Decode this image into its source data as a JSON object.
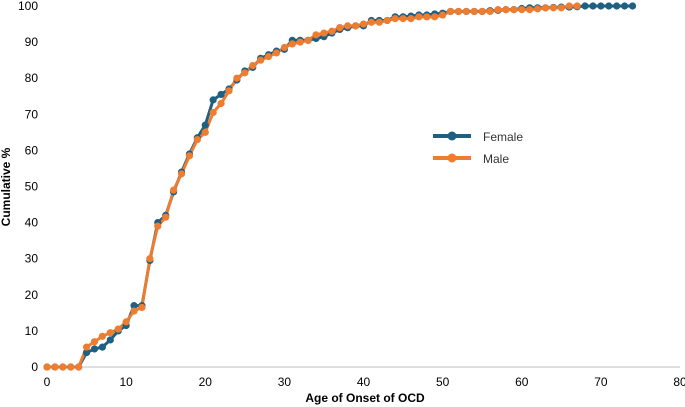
{
  "chart_data": {
    "type": "line",
    "title": "",
    "xlabel": "Age of Onset of OCD",
    "ylabel": "Cumulative %",
    "xlim": [
      0,
      80
    ],
    "ylim": [
      0,
      100
    ],
    "x_ticks": [
      0,
      10,
      20,
      30,
      40,
      50,
      60,
      70,
      80
    ],
    "y_ticks": [
      0,
      10,
      20,
      30,
      40,
      50,
      60,
      70,
      80,
      90,
      100
    ],
    "grid": false,
    "legend_position": "right",
    "series": [
      {
        "name": "Female",
        "color": "#1f5f82",
        "x": [
          0,
          1,
          2,
          3,
          4,
          5,
          6,
          7,
          8,
          9,
          10,
          11,
          12,
          13,
          14,
          15,
          16,
          17,
          18,
          19,
          20,
          21,
          22,
          23,
          24,
          25,
          26,
          27,
          28,
          29,
          30,
          31,
          32,
          33,
          34,
          35,
          36,
          37,
          38,
          39,
          40,
          41,
          42,
          43,
          44,
          45,
          46,
          47,
          48,
          49,
          50,
          51,
          52,
          53,
          54,
          55,
          56,
          57,
          58,
          59,
          60,
          61,
          62,
          63,
          64,
          65,
          66,
          67,
          68,
          69,
          70,
          71,
          72,
          73,
          74
        ],
        "values": [
          0,
          0,
          0,
          0,
          0,
          4,
          5,
          5.5,
          7.5,
          10,
          11.5,
          17,
          17,
          29.5,
          40,
          42,
          48.5,
          54,
          59,
          63.5,
          67,
          74,
          75.5,
          77,
          79.5,
          82,
          83,
          85.5,
          86.5,
          87.5,
          88,
          90.5,
          90.5,
          90.5,
          91,
          91.5,
          92.5,
          93.5,
          94,
          94.5,
          94.5,
          96,
          96,
          96,
          97,
          97,
          97.2,
          97.5,
          97.5,
          97.8,
          98,
          98.5,
          98.5,
          98.5,
          98.5,
          98.5,
          98.7,
          98.8,
          99,
          99,
          99.3,
          99.5,
          99.5,
          99.5,
          99.6,
          99.7,
          99.7,
          99.8,
          100,
          100,
          100,
          100,
          100,
          100,
          100
        ]
      },
      {
        "name": "Male",
        "color": "#ed7d31",
        "x": [
          0,
          1,
          2,
          3,
          4,
          5,
          6,
          7,
          8,
          9,
          10,
          11,
          12,
          13,
          14,
          15,
          16,
          17,
          18,
          19,
          20,
          21,
          22,
          23,
          24,
          25,
          26,
          27,
          28,
          29,
          30,
          31,
          32,
          33,
          34,
          35,
          36,
          37,
          38,
          39,
          40,
          41,
          42,
          43,
          44,
          45,
          46,
          47,
          48,
          49,
          50,
          51,
          52,
          53,
          54,
          55,
          56,
          57,
          58,
          59,
          60,
          61,
          62,
          63,
          64,
          65,
          66,
          67
        ],
        "values": [
          0,
          0,
          0,
          0,
          0,
          5.5,
          7,
          8.5,
          9.5,
          10.5,
          12.5,
          15.5,
          16.5,
          30,
          39,
          41.5,
          49,
          53.5,
          58.5,
          63,
          65,
          70.5,
          73,
          76.5,
          80,
          81.5,
          83.5,
          85,
          86,
          87,
          88.5,
          89.5,
          90,
          90.5,
          92,
          92.5,
          93,
          94,
          94.5,
          94.5,
          95,
          95.5,
          95.5,
          96,
          96.5,
          96.5,
          96.5,
          97,
          97,
          97,
          97.5,
          98.5,
          98.5,
          98.5,
          98.5,
          98.5,
          98.5,
          99,
          99,
          99,
          99,
          99,
          99.2,
          99.5,
          99.5,
          99.5,
          100,
          100
        ]
      }
    ]
  }
}
